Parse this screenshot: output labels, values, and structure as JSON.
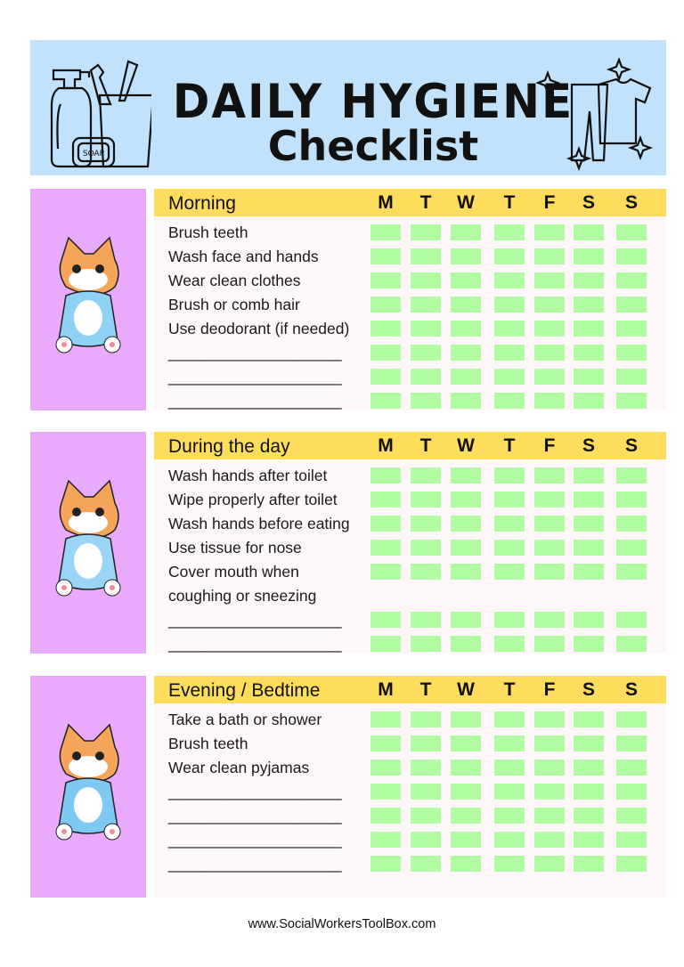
{
  "header": {
    "title_line1": "DAILY HYGIENE",
    "title_line2": "Checklist",
    "soap_label": "SOAP"
  },
  "days": [
    "M",
    "T",
    "W",
    "T",
    "F",
    "S",
    "S"
  ],
  "colors": {
    "header_bg": "#c2e2fc",
    "panel": "#e9aafb",
    "bar": "#fedd5c",
    "checkbox": "#b1fca2",
    "body": "#fdf7f7"
  },
  "sections": [
    {
      "title": "Morning",
      "image": "cat-brushing-teeth",
      "rows": [
        {
          "label": "Brush teeth",
          "boxes": true
        },
        {
          "label": "Wash face and hands",
          "boxes": true
        },
        {
          "label": "Wear clean clothes",
          "boxes": true
        },
        {
          "label": "Brush or comb hair",
          "boxes": true
        },
        {
          "label": "Use deodorant (if needed)",
          "boxes": true
        },
        {
          "label": "____________________",
          "boxes": true
        },
        {
          "label": "____________________",
          "boxes": true
        },
        {
          "label": "____________________",
          "boxes": true
        }
      ]
    },
    {
      "title": "During the day",
      "image": "cat-washing-hands",
      "rows": [
        {
          "label": "Wash hands after toilet",
          "boxes": true
        },
        {
          "label": "Wipe properly after toilet",
          "boxes": true
        },
        {
          "label": "Wash hands before eating",
          "boxes": true
        },
        {
          "label": "Use tissue for nose",
          "boxes": true
        },
        {
          "label": "Cover mouth when",
          "boxes": true
        },
        {
          "label": "coughing or sneezing",
          "boxes": false
        },
        {
          "label": "____________________",
          "boxes": true
        },
        {
          "label": "____________________",
          "boxes": true
        }
      ]
    },
    {
      "title": "Evening / Bedtime",
      "image": "cat-in-pyjamas",
      "rows": [
        {
          "label": "Take a bath or shower",
          "boxes": true
        },
        {
          "label": "Brush teeth",
          "boxes": true
        },
        {
          "label": "Wear clean pyjamas",
          "boxes": true
        },
        {
          "label": "____________________",
          "boxes": true
        },
        {
          "label": "____________________",
          "boxes": true
        },
        {
          "label": "____________________",
          "boxes": true
        },
        {
          "label": "____________________",
          "boxes": true
        }
      ]
    }
  ],
  "footer": "www.SocialWorkersToolBox.com"
}
